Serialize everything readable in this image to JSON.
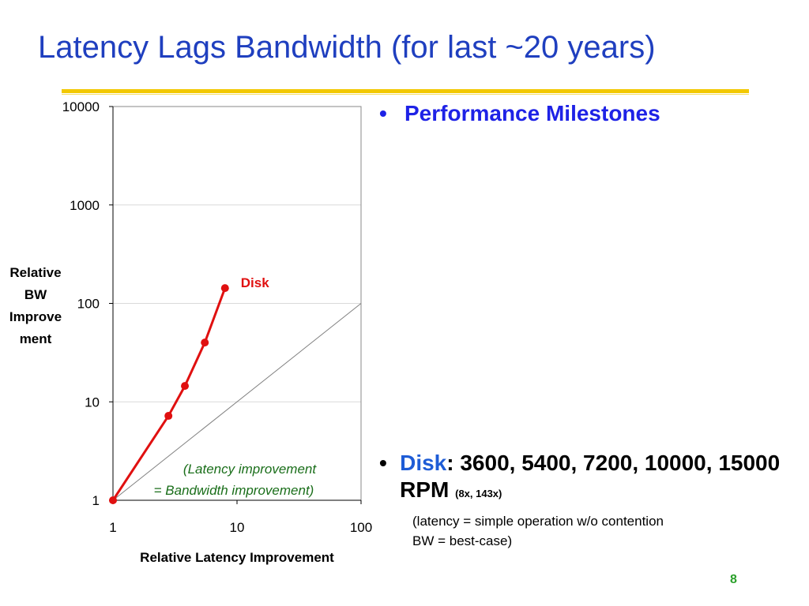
{
  "slide": {
    "title": "Latency Lags Bandwidth (for last ~20 years)",
    "page_number": "8"
  },
  "bullets": {
    "milestones": "Performance Milestones",
    "disk_label": "Disk",
    "disk_text": ": 3600, 5400, 7200, 10000, 15000 RPM",
    "disk_ratio": "(8x, 143x)",
    "note_line1": "(latency = simple operation w/o contention",
    "note_line2": "BW = best-case)"
  },
  "chart_data": {
    "type": "line",
    "xlabel": "Relative Latency Improvement",
    "ylabel": "Relative BW Improvement",
    "ylabel_lines": [
      "Relative",
      "BW",
      "Improve",
      "ment"
    ],
    "xscale": "log",
    "yscale": "log",
    "xlim": [
      1,
      100
    ],
    "ylim": [
      1,
      10000
    ],
    "x_ticks": [
      "1",
      "10",
      "100"
    ],
    "y_ticks": [
      "1",
      "10",
      "100",
      "1000",
      "10000"
    ],
    "grid": "horizontal",
    "series": [
      {
        "name": "Disk",
        "color": "#e01010",
        "x": [
          1,
          2.8,
          3.8,
          5.5,
          8
        ],
        "y": [
          1,
          7.2,
          14.5,
          40,
          143
        ]
      }
    ],
    "reference_line": {
      "x": [
        1,
        100
      ],
      "y": [
        1,
        100
      ],
      "label_line1": "(Latency improvement",
      "label_line2": "= Bandwidth improvement)",
      "color": "#808080",
      "label_color": "#1a6e1a"
    }
  }
}
